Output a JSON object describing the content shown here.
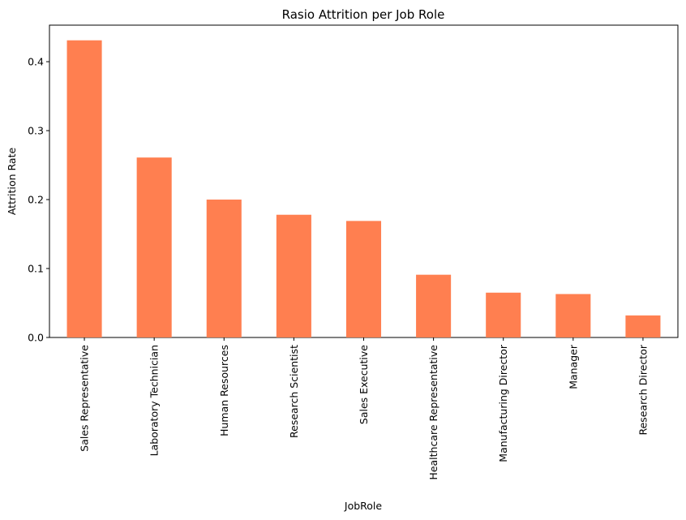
{
  "chart_data": {
    "type": "bar",
    "title": "Rasio Attrition per Job Role",
    "xlabel": "JobRole",
    "ylabel": "Attrition Rate",
    "categories": [
      "Sales Representative",
      "Laboratory Technician",
      "Human Resources",
      "Research Scientist",
      "Sales Executive",
      "Healthcare Representative",
      "Manufacturing Director",
      "Manager",
      "Research Director"
    ],
    "values": [
      0.431,
      0.261,
      0.2,
      0.178,
      0.169,
      0.091,
      0.065,
      0.063,
      0.032
    ],
    "ylim": [
      0,
      0.453
    ],
    "yticks": [
      0.0,
      0.1,
      0.2,
      0.3,
      0.4
    ],
    "ytick_labels": [
      "0.0",
      "0.1",
      "0.2",
      "0.3",
      "0.4"
    ],
    "bar_color": "#ff7f50",
    "grid": false,
    "legend": "none"
  }
}
